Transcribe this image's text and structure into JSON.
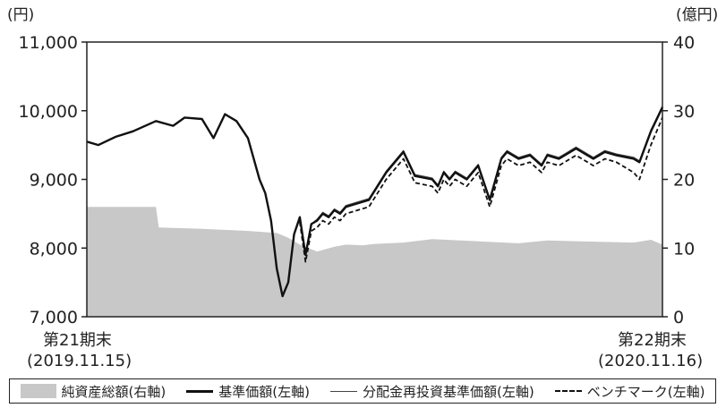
{
  "chart_data": {
    "type": "line",
    "left_axis_unit": "(円)",
    "right_axis_unit": "(億円)",
    "left_ylim": [
      7000,
      11000
    ],
    "right_ylim": [
      0,
      40
    ],
    "left_ticks": [
      "7,000",
      "8,000",
      "9,000",
      "10,000",
      "11,000"
    ],
    "left_tick_values": [
      7000,
      8000,
      9000,
      10000,
      11000
    ],
    "right_ticks": [
      "0",
      "10",
      "20",
      "30",
      "40"
    ],
    "right_tick_values": [
      0,
      10,
      20,
      30,
      40
    ],
    "x_start_label": [
      "第21期末",
      "(2019.11.15)"
    ],
    "x_end_label": [
      "第22期末",
      "(2020.11.16)"
    ],
    "x_range": [
      0,
      100
    ],
    "series": [
      {
        "name": "純資産総額(右軸)",
        "axis": "right",
        "style": "area",
        "color": "#c8c8c8",
        "x": [
          0,
          12,
          12.5,
          20,
          28,
          33,
          35,
          37,
          40,
          43,
          45,
          48,
          50,
          55,
          60,
          65,
          70,
          75,
          80,
          85,
          90,
          95,
          98,
          100
        ],
        "y": [
          16,
          16,
          13,
          12.8,
          12.5,
          12.2,
          11.5,
          10.5,
          9.5,
          10.2,
          10.5,
          10.4,
          10.6,
          10.8,
          11.3,
          11.1,
          10.9,
          10.7,
          11.1,
          11,
          10.9,
          10.8,
          11.2,
          10.5
        ]
      },
      {
        "name": "基準価額(左軸)",
        "axis": "left",
        "style": "solid",
        "color": "#111111",
        "x": [
          0,
          2,
          5,
          8,
          12,
          15,
          17,
          20,
          22,
          24,
          26,
          28,
          30,
          31,
          32,
          33,
          34,
          35,
          36,
          37,
          38,
          39,
          40,
          41,
          42,
          43,
          44,
          45,
          47,
          49,
          52,
          55,
          57,
          60,
          61,
          62,
          63,
          64,
          66,
          68,
          70,
          72,
          73,
          74,
          75,
          77,
          79,
          80,
          82,
          85,
          88,
          90,
          92,
          95,
          96,
          98,
          100
        ],
        "y": [
          9550,
          9500,
          9620,
          9700,
          9850,
          9780,
          9900,
          9880,
          9600,
          9950,
          9850,
          9600,
          9000,
          8800,
          8400,
          7700,
          7300,
          7500,
          8200,
          8450,
          7900,
          8350,
          8400,
          8500,
          8450,
          8550,
          8500,
          8600,
          8650,
          8700,
          9100,
          9400,
          9050,
          9000,
          8900,
          9100,
          9000,
          9100,
          9000,
          9200,
          8700,
          9300,
          9400,
          9350,
          9300,
          9350,
          9200,
          9350,
          9300,
          9450,
          9300,
          9400,
          9350,
          9300,
          9250,
          9700,
          10050
        ]
      },
      {
        "name": "分配金再投資基準価額(左軸)",
        "axis": "left",
        "style": "thin",
        "color": "#444444",
        "x": [
          0,
          2,
          5,
          8,
          12,
          15,
          17,
          20,
          22,
          24,
          26,
          28,
          30,
          31,
          32,
          33,
          34,
          35,
          36,
          37,
          38,
          39,
          40,
          41,
          42,
          43,
          44,
          45,
          47,
          49,
          52,
          55,
          57,
          60,
          61,
          62,
          63,
          64,
          66,
          68,
          70,
          72,
          73,
          74,
          75,
          77,
          79,
          80,
          82,
          85,
          88,
          90,
          92,
          95,
          96,
          98,
          100
        ],
        "y": [
          9550,
          9500,
          9620,
          9700,
          9850,
          9780,
          9900,
          9880,
          9600,
          9950,
          9850,
          9600,
          9000,
          8800,
          8400,
          7700,
          7300,
          7500,
          8200,
          8450,
          7900,
          8350,
          8420,
          8520,
          8470,
          8570,
          8520,
          8620,
          8670,
          8720,
          9120,
          9420,
          9070,
          9020,
          8920,
          9120,
          9020,
          9120,
          9020,
          9220,
          8720,
          9320,
          9420,
          9370,
          9320,
          9370,
          9220,
          9370,
          9320,
          9470,
          9320,
          9420,
          9370,
          9320,
          9270,
          9720,
          10070
        ]
      },
      {
        "name": "ベンチマーク(左軸)",
        "axis": "left",
        "style": "dashed",
        "color": "#111111",
        "x": [
          37,
          38,
          39,
          40,
          41,
          42,
          43,
          44,
          45,
          47,
          49,
          52,
          55,
          57,
          60,
          61,
          62,
          63,
          64,
          66,
          68,
          70,
          72,
          73,
          74,
          75,
          77,
          79,
          80,
          82,
          85,
          88,
          90,
          92,
          95,
          96,
          98,
          100
        ],
        "y": [
          8380,
          7800,
          8250,
          8300,
          8400,
          8350,
          8450,
          8400,
          8500,
          8550,
          8600,
          9000,
          9300,
          8950,
          8900,
          8800,
          9000,
          8900,
          9000,
          8900,
          9100,
          8600,
          9200,
          9300,
          9250,
          9200,
          9250,
          9100,
          9250,
          9200,
          9350,
          9200,
          9300,
          9250,
          9100,
          9000,
          9500,
          9900
        ]
      }
    ],
    "legend_position": "bottom",
    "grid": false
  }
}
